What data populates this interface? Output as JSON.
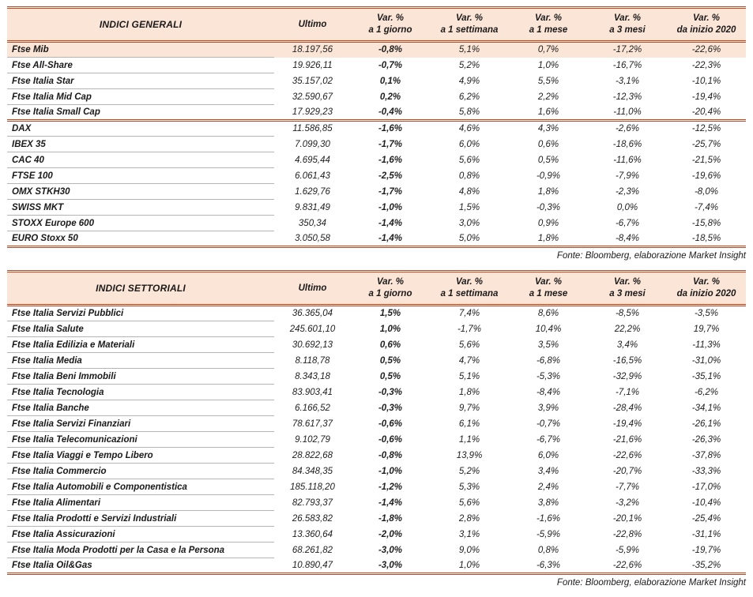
{
  "colors": {
    "accent": "#c0451c",
    "header_bg": "#fbe5d6",
    "highlight_bg": "#fbe5d6",
    "row_line": "#b5b5b5"
  },
  "columns": {
    "value_label": "Ultimo",
    "var_label": "Var. %",
    "periods": [
      "a 1 giorno",
      "a 1 settimana",
      "a 1 mese",
      "a 3 mesi",
      "da inizio 2020"
    ]
  },
  "fonte": "Fonte: Bloomberg, elaborazione Market Insight",
  "tables": [
    {
      "title": "INDICI GENERALI",
      "groups": [
        {
          "rows": [
            {
              "name": "Ftse Mib",
              "highlight": true,
              "values": [
                "18.197,56",
                "-0,8%",
                "5,1%",
                "0,7%",
                "-17,2%",
                "-22,6%"
              ]
            },
            {
              "name": "Ftse All-Share",
              "values": [
                "19.926,11",
                "-0,7%",
                "5,2%",
                "1,0%",
                "-16,7%",
                "-22,3%"
              ]
            },
            {
              "name": "Ftse Italia Star",
              "values": [
                "35.157,02",
                "0,1%",
                "4,9%",
                "5,5%",
                "-3,1%",
                "-10,1%"
              ]
            },
            {
              "name": "Ftse Italia Mid Cap",
              "values": [
                "32.590,67",
                "0,2%",
                "6,2%",
                "2,2%",
                "-12,3%",
                "-19,4%"
              ]
            },
            {
              "name": "Ftse Italia Small Cap",
              "values": [
                "17.929,23",
                "-0,4%",
                "5,8%",
                "1,6%",
                "-11,0%",
                "-20,4%"
              ]
            }
          ]
        },
        {
          "rows": [
            {
              "name": "DAX",
              "values": [
                "11.586,85",
                "-1,6%",
                "4,6%",
                "4,3%",
                "-2,6%",
                "-12,5%"
              ]
            },
            {
              "name": "IBEX 35",
              "values": [
                "7.099,30",
                "-1,7%",
                "6,0%",
                "0,6%",
                "-18,6%",
                "-25,7%"
              ]
            },
            {
              "name": "CAC 40",
              "values": [
                "4.695,44",
                "-1,6%",
                "5,6%",
                "0,5%",
                "-11,6%",
                "-21,5%"
              ]
            },
            {
              "name": "FTSE 100",
              "values": [
                "6.061,43",
                "-2,5%",
                "0,8%",
                "-0,9%",
                "-7,9%",
                "-19,6%"
              ]
            },
            {
              "name": "OMX STKH30",
              "values": [
                "1.629,76",
                "-1,7%",
                "4,8%",
                "1,8%",
                "-2,3%",
                "-8,0%"
              ]
            },
            {
              "name": "SWISS MKT",
              "values": [
                "9.831,49",
                "-1,0%",
                "1,5%",
                "-0,3%",
                "0,0%",
                "-7,4%"
              ]
            },
            {
              "name": "STOXX Europe 600",
              "values": [
                "350,34",
                "-1,4%",
                "3,0%",
                "0,9%",
                "-6,7%",
                "-15,8%"
              ]
            },
            {
              "name": "EURO Stoxx 50",
              "values": [
                "3.050,58",
                "-1,4%",
                "5,0%",
                "1,8%",
                "-8,4%",
                "-18,5%"
              ]
            }
          ]
        }
      ]
    },
    {
      "title": "INDICI SETTORIALI",
      "groups": [
        {
          "rows": [
            {
              "name": "Ftse Italia Servizi Pubblici",
              "values": [
                "36.365,04",
                "1,5%",
                "7,4%",
                "8,6%",
                "-8,5%",
                "-3,5%"
              ]
            },
            {
              "name": "Ftse Italia Salute",
              "values": [
                "245.601,10",
                "1,0%",
                "-1,7%",
                "10,4%",
                "22,2%",
                "19,7%"
              ]
            },
            {
              "name": "Ftse Italia Edilizia e Materiali",
              "values": [
                "30.692,13",
                "0,6%",
                "5,6%",
                "3,5%",
                "3,4%",
                "-11,3%"
              ]
            },
            {
              "name": "Ftse Italia Media",
              "values": [
                "8.118,78",
                "0,5%",
                "4,7%",
                "-6,8%",
                "-16,5%",
                "-31,0%"
              ]
            },
            {
              "name": "Ftse Italia Beni Immobili",
              "values": [
                "8.343,18",
                "0,5%",
                "5,1%",
                "-5,3%",
                "-32,9%",
                "-35,1%"
              ]
            },
            {
              "name": "Ftse Italia Tecnologia",
              "values": [
                "83.903,41",
                "-0,3%",
                "1,8%",
                "-8,4%",
                "-7,1%",
                "-6,2%"
              ]
            },
            {
              "name": "Ftse Italia Banche",
              "values": [
                "6.166,52",
                "-0,3%",
                "9,7%",
                "3,9%",
                "-28,4%",
                "-34,1%"
              ]
            },
            {
              "name": "Ftse Italia Servizi Finanziari",
              "values": [
                "78.617,37",
                "-0,6%",
                "6,1%",
                "-0,7%",
                "-19,4%",
                "-26,1%"
              ]
            },
            {
              "name": "Ftse Italia Telecomunicazioni",
              "values": [
                "9.102,79",
                "-0,6%",
                "1,1%",
                "-6,7%",
                "-21,6%",
                "-26,3%"
              ]
            },
            {
              "name": "Ftse Italia Viaggi e Tempo Libero",
              "values": [
                "28.822,68",
                "-0,8%",
                "13,9%",
                "6,0%",
                "-22,6%",
                "-37,8%"
              ]
            },
            {
              "name": "Ftse Italia Commercio",
              "values": [
                "84.348,35",
                "-1,0%",
                "5,2%",
                "3,4%",
                "-20,7%",
                "-33,3%"
              ]
            },
            {
              "name": "Ftse Italia Automobili e Componentistica",
              "values": [
                "185.118,20",
                "-1,2%",
                "5,3%",
                "2,4%",
                "-7,7%",
                "-17,0%"
              ]
            },
            {
              "name": "Ftse Italia Alimentari",
              "values": [
                "82.793,37",
                "-1,4%",
                "5,6%",
                "3,8%",
                "-3,2%",
                "-10,4%"
              ]
            },
            {
              "name": "Ftse Italia Prodotti e Servizi Industriali",
              "values": [
                "26.583,82",
                "-1,8%",
                "2,8%",
                "-1,6%",
                "-20,1%",
                "-25,4%"
              ]
            },
            {
              "name": "Ftse Italia Assicurazioni",
              "values": [
                "13.360,64",
                "-2,0%",
                "3,1%",
                "-5,9%",
                "-22,8%",
                "-31,1%"
              ]
            },
            {
              "name": "Ftse Italia Moda Prodotti per la Casa e la Persona",
              "values": [
                "68.261,82",
                "-3,0%",
                "9,0%",
                "0,8%",
                "-5,9%",
                "-19,7%"
              ]
            },
            {
              "name": "Ftse Italia Oil&Gas",
              "values": [
                "10.890,47",
                "-3,0%",
                "1,0%",
                "-6,3%",
                "-22,6%",
                "-35,2%"
              ]
            }
          ]
        }
      ]
    }
  ]
}
